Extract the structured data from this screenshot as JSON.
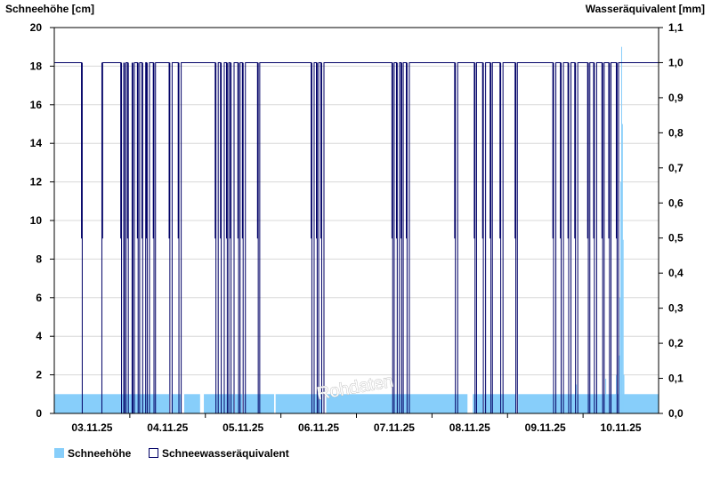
{
  "chart_data": {
    "type": "area+step",
    "ylabel_left": "Schneehöhe [cm]",
    "ylabel_right": "Wasseräquivalent [mm]",
    "ylim_left": [
      0,
      20
    ],
    "ylim_right": [
      0,
      1.1
    ],
    "yticks_left": [
      "0",
      "2",
      "4",
      "6",
      "8",
      "10",
      "12",
      "14",
      "16",
      "18",
      "20"
    ],
    "yticks_right": [
      "0,0",
      "0,1",
      "0,2",
      "0,3",
      "0,4",
      "0,5",
      "0,6",
      "0,7",
      "0,8",
      "0,9",
      "1,0",
      "1,1"
    ],
    "x_days": [
      "03.11.25",
      "04.11.25",
      "05.11.25",
      "06.11.25",
      "07.11.25",
      "08.11.25",
      "09.11.25",
      "10.11.25"
    ],
    "x_range_days": [
      2.0,
      10.0
    ],
    "grid": true,
    "legend_position": "bottom-left",
    "watermark": "Rohdaten",
    "colors": {
      "snow_depth": "#87cefa",
      "swe": "#000066",
      "grid": "#d8d8d8",
      "axis": "#000000"
    },
    "series": [
      {
        "name": "Schneehöhe",
        "kind": "area",
        "axis": "left",
        "baseline_value": 1,
        "gaps": [
          [
            3.52,
            3.55
          ],
          [
            3.68,
            3.72
          ],
          [
            3.93,
            3.98
          ],
          [
            4.38,
            4.39
          ],
          [
            4.49,
            4.51
          ],
          [
            4.91,
            4.93
          ],
          [
            5.55,
            5.6
          ],
          [
            7.47,
            7.52
          ],
          [
            7.52,
            7.54
          ],
          [
            7.68,
            7.69
          ],
          [
            8.11,
            8.14
          ]
        ],
        "peaks": [
          {
            "x": 8.91,
            "value": 1.5
          },
          {
            "x": 9.3,
            "value": 1.8
          },
          {
            "x": 9.36,
            "value": 0.6
          },
          {
            "x": 9.43,
            "value": 1.0
          },
          {
            "x": 9.44,
            "value": 2.0
          },
          {
            "x": 9.47,
            "value": 1.5
          },
          {
            "x": 9.48,
            "value": 3.0
          },
          {
            "x": 9.49,
            "value": 6.0
          },
          {
            "x": 9.5,
            "value": 12.0
          },
          {
            "x": 9.51,
            "value": 19.0
          },
          {
            "x": 9.52,
            "value": 15.0
          },
          {
            "x": 9.53,
            "value": 9.0
          },
          {
            "x": 9.54,
            "value": 2.0
          }
        ]
      },
      {
        "name": "Schneewasseräquivalent",
        "kind": "step",
        "axis": "right",
        "default_value": 1.0,
        "segments": [
          [
            2.36,
            2.37,
            0.5
          ],
          [
            2.37,
            2.63,
            0.0
          ],
          [
            2.63,
            2.64,
            0.5
          ],
          [
            2.88,
            2.89,
            0.5
          ],
          [
            2.89,
            2.92,
            0.0
          ],
          [
            2.92,
            2.93,
            0.5
          ],
          [
            2.93,
            2.95,
            0.0
          ],
          [
            2.97,
            2.98,
            0.5
          ],
          [
            2.98,
            3.03,
            0.0
          ],
          [
            3.03,
            3.04,
            0.5
          ],
          [
            3.04,
            3.06,
            0.0
          ],
          [
            3.1,
            3.11,
            0.5
          ],
          [
            3.11,
            3.13,
            0.0
          ],
          [
            3.16,
            3.17,
            0.5
          ],
          [
            3.17,
            3.21,
            0.0
          ],
          [
            3.22,
            3.23,
            0.5
          ],
          [
            3.23,
            3.26,
            0.0
          ],
          [
            3.31,
            3.32,
            0.5
          ],
          [
            3.32,
            3.34,
            0.0
          ],
          [
            3.52,
            3.53,
            0.5
          ],
          [
            3.53,
            3.56,
            0.0
          ],
          [
            3.64,
            3.65,
            0.5
          ],
          [
            3.65,
            3.68,
            0.0
          ],
          [
            4.13,
            4.14,
            0.5
          ],
          [
            4.14,
            4.17,
            0.0
          ],
          [
            4.2,
            4.21,
            0.5
          ],
          [
            4.21,
            4.25,
            0.0
          ],
          [
            4.28,
            4.29,
            0.5
          ],
          [
            4.29,
            4.31,
            0.0
          ],
          [
            4.33,
            4.34,
            0.5
          ],
          [
            4.34,
            4.38,
            0.0
          ],
          [
            4.43,
            4.44,
            0.5
          ],
          [
            4.44,
            4.46,
            0.0
          ],
          [
            4.49,
            4.5,
            0.5
          ],
          [
            4.5,
            4.53,
            0.0
          ],
          [
            4.69,
            4.7,
            0.5
          ],
          [
            4.7,
            4.72,
            0.0
          ],
          [
            5.4,
            5.41,
            0.5
          ],
          [
            5.41,
            5.44,
            0.0
          ],
          [
            5.47,
            5.48,
            0.5
          ],
          [
            5.48,
            5.5,
            0.0
          ],
          [
            5.53,
            5.54,
            0.5
          ],
          [
            5.54,
            5.57,
            0.0
          ],
          [
            6.47,
            6.48,
            0.5
          ],
          [
            6.48,
            6.5,
            0.0
          ],
          [
            6.53,
            6.54,
            0.5
          ],
          [
            6.54,
            6.57,
            0.0
          ],
          [
            6.59,
            6.6,
            0.5
          ],
          [
            6.6,
            6.62,
            0.0
          ],
          [
            6.66,
            6.67,
            0.5
          ],
          [
            6.67,
            6.7,
            0.0
          ],
          [
            7.3,
            7.31,
            0.5
          ],
          [
            7.31,
            7.34,
            0.0
          ],
          [
            7.56,
            7.57,
            0.5
          ],
          [
            7.57,
            7.59,
            0.0
          ],
          [
            7.67,
            7.68,
            0.5
          ],
          [
            7.68,
            7.71,
            0.0
          ],
          [
            7.77,
            7.78,
            0.5
          ],
          [
            7.78,
            7.8,
            0.0
          ],
          [
            7.9,
            7.91,
            0.5
          ],
          [
            7.91,
            7.94,
            0.0
          ],
          [
            8.1,
            8.11,
            0.5
          ],
          [
            8.11,
            8.13,
            0.0
          ],
          [
            8.6,
            8.61,
            0.5
          ],
          [
            8.61,
            8.64,
            0.0
          ],
          [
            8.7,
            8.71,
            0.5
          ],
          [
            8.71,
            8.74,
            0.0
          ],
          [
            8.8,
            8.81,
            0.5
          ],
          [
            8.81,
            8.84,
            0.0
          ],
          [
            8.89,
            8.9,
            0.5
          ],
          [
            8.9,
            8.93,
            0.0
          ],
          [
            9.06,
            9.07,
            0.5
          ],
          [
            9.07,
            9.09,
            0.0
          ],
          [
            9.14,
            9.15,
            0.5
          ],
          [
            9.15,
            9.18,
            0.0
          ],
          [
            9.25,
            9.26,
            0.5
          ],
          [
            9.26,
            9.28,
            0.0
          ],
          [
            9.34,
            9.35,
            0.5
          ],
          [
            9.35,
            9.37,
            0.0
          ],
          [
            9.44,
            9.45,
            0.5
          ],
          [
            9.45,
            9.47,
            0.0
          ]
        ]
      }
    ]
  }
}
